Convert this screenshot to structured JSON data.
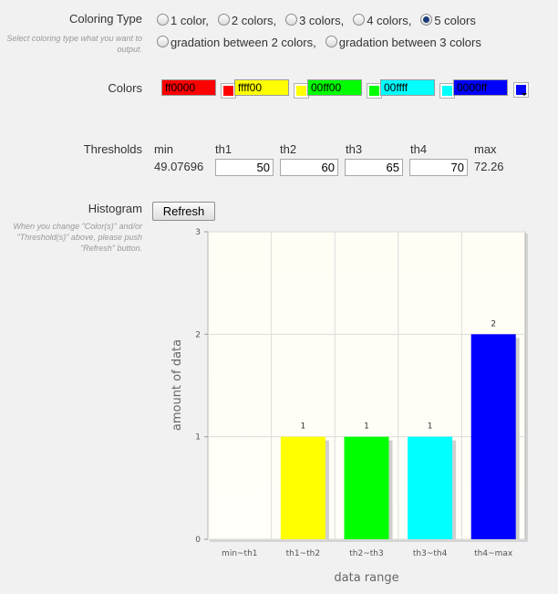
{
  "coloring": {
    "label": "Coloring Type",
    "hint": "Select coloring type what you want to output.",
    "options": [
      "1 color,",
      "2 colors,",
      "3 colors,",
      "4 colors,",
      "5 colors",
      "gradation between 2 colors,",
      "gradation between 3 colors"
    ],
    "selected_index": 4
  },
  "colors": {
    "label": "Colors",
    "items": [
      {
        "value": "ff0000",
        "hex": "#ff0000"
      },
      {
        "value": "ffff00",
        "hex": "#ffff00"
      },
      {
        "value": "00ff00",
        "hex": "#00ff00"
      },
      {
        "value": "00ffff",
        "hex": "#00ffff"
      },
      {
        "value": "0000ff",
        "hex": "#0000ff"
      }
    ]
  },
  "thresholds": {
    "label": "Thresholds",
    "headers": [
      "min",
      "th1",
      "th2",
      "th3",
      "th4",
      "max"
    ],
    "min": "49.07696",
    "max": "72.26",
    "inputs": [
      "50",
      "60",
      "65",
      "70"
    ]
  },
  "histogram": {
    "label": "Histogram",
    "hint": "When you change \"Color(s)\" and/or \"Threshold(s)\" above, please push \"Refresh\" button.",
    "refresh_label": "Refresh"
  },
  "chart_data": {
    "type": "bar",
    "categories": [
      "min~th1",
      "th1~th2",
      "th2~th3",
      "th3~th4",
      "th4~max"
    ],
    "values": [
      0,
      1,
      1,
      1,
      2
    ],
    "value_labels": [
      "",
      "1",
      "1",
      "1",
      "2"
    ],
    "colors": [
      "#ff0000",
      "#ffff00",
      "#00ff00",
      "#00ffff",
      "#0000ff"
    ],
    "xlabel": "data range",
    "ylabel": "amount of data",
    "ylim": [
      0,
      3
    ],
    "yticks": [
      "0",
      "1",
      "2",
      "3"
    ],
    "grid": true
  }
}
